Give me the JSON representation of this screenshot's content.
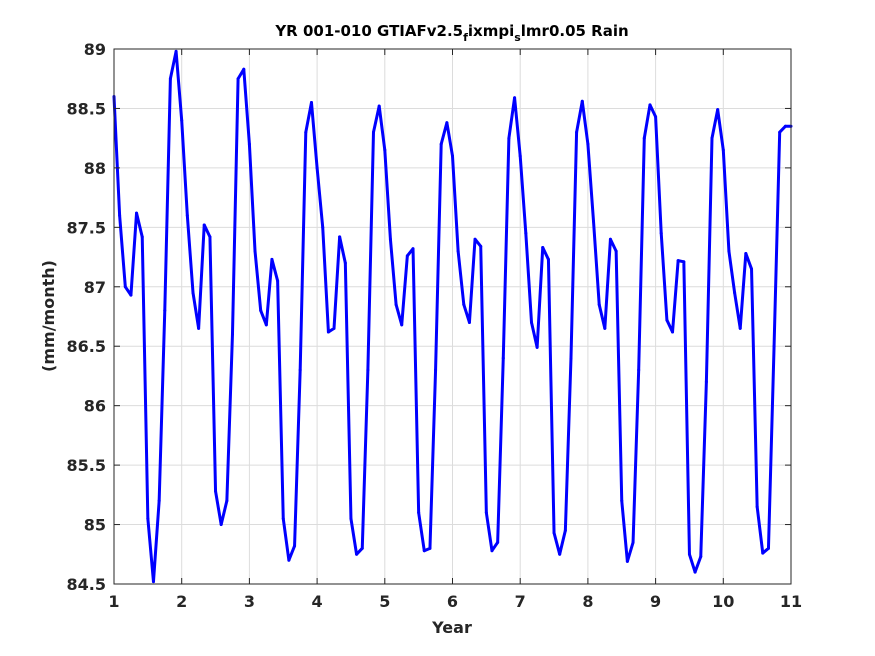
{
  "chart_data": {
    "type": "line",
    "title": {
      "part1": "YR 001-010 GTIAFv2.5",
      "sub1": "f",
      "part2": "ixmpi",
      "sub2": "s",
      "part3": "lmr0.05 Rain"
    },
    "xlabel": "Year",
    "ylabel": "(mm/month)",
    "xlim": [
      1,
      11
    ],
    "ylim": [
      84.5,
      89
    ],
    "xticks": [
      1,
      2,
      3,
      4,
      5,
      6,
      7,
      8,
      9,
      10,
      11
    ],
    "yticks": [
      84.5,
      85,
      85.5,
      86,
      86.5,
      87,
      87.5,
      88,
      88.5,
      89
    ],
    "xtick_labels": [
      "1",
      "2",
      "3",
      "4",
      "5",
      "6",
      "7",
      "8",
      "9",
      "10",
      "11"
    ],
    "ytick_labels": [
      "84.5",
      "85",
      "85.5",
      "86",
      "86.5",
      "87",
      "87.5",
      "88",
      "88.5",
      "89"
    ],
    "grid": true,
    "line_color": "#0000ff",
    "series": [
      {
        "x": [
          1.0,
          1.083,
          1.167,
          1.25,
          1.333,
          1.417,
          1.5,
          1.583,
          1.667,
          1.75,
          1.833,
          1.917,
          2.0,
          2.083,
          2.167,
          2.25,
          2.333,
          2.417,
          2.5,
          2.583,
          2.667,
          2.75,
          2.833,
          2.917,
          3.0,
          3.083,
          3.167,
          3.25,
          3.333,
          3.417,
          3.5,
          3.583,
          3.667,
          3.75,
          3.833,
          3.917,
          4.0,
          4.083,
          4.167,
          4.25,
          4.333,
          4.417,
          4.5,
          4.583,
          4.667,
          4.75,
          4.833,
          4.917,
          5.0,
          5.083,
          5.167,
          5.25,
          5.333,
          5.417,
          5.5,
          5.583,
          5.667,
          5.75,
          5.833,
          5.917,
          6.0,
          6.083,
          6.167,
          6.25,
          6.333,
          6.417,
          6.5,
          6.583,
          6.667,
          6.75,
          6.833,
          6.917,
          7.0,
          7.083,
          7.167,
          7.25,
          7.333,
          7.417,
          7.5,
          7.583,
          7.667,
          7.75,
          7.833,
          7.917,
          8.0,
          8.083,
          8.167,
          8.25,
          8.333,
          8.417,
          8.5,
          8.583,
          8.667,
          8.75,
          8.833,
          8.917,
          9.0,
          9.083,
          9.167,
          9.25,
          9.333,
          9.417,
          9.5,
          9.583,
          9.667,
          9.75,
          9.833,
          9.917,
          10.0,
          10.083,
          10.167,
          10.25,
          10.333,
          10.417,
          10.5,
          10.583,
          10.667,
          10.75,
          10.833,
          10.917,
          11.0
        ],
        "y": [
          88.6,
          87.6,
          87.0,
          86.93,
          87.62,
          87.42,
          85.05,
          84.52,
          85.2,
          86.8,
          88.75,
          88.98,
          88.4,
          87.6,
          86.95,
          86.65,
          87.52,
          87.42,
          85.28,
          85.0,
          85.2,
          86.6,
          88.75,
          88.83,
          88.2,
          87.3,
          86.8,
          86.68,
          87.23,
          87.05,
          85.05,
          84.7,
          84.82,
          86.3,
          88.3,
          88.55,
          88.0,
          87.5,
          86.62,
          86.65,
          87.42,
          87.2,
          85.05,
          84.75,
          84.8,
          86.3,
          88.3,
          88.52,
          88.15,
          87.4,
          86.85,
          86.68,
          87.26,
          87.32,
          85.1,
          84.78,
          84.8,
          86.3,
          88.2,
          88.38,
          88.1,
          87.3,
          86.85,
          86.7,
          87.4,
          87.34,
          85.1,
          84.78,
          84.85,
          86.4,
          88.25,
          88.59,
          88.1,
          87.45,
          86.7,
          86.49,
          87.33,
          87.23,
          84.93,
          84.75,
          84.95,
          86.4,
          88.3,
          88.56,
          88.2,
          87.55,
          86.85,
          86.65,
          87.4,
          87.3,
          85.2,
          84.69,
          84.85,
          86.3,
          88.25,
          88.53,
          88.43,
          87.45,
          86.72,
          86.62,
          87.22,
          87.21,
          84.75,
          84.6,
          84.73,
          86.2,
          88.25,
          88.49,
          88.15,
          87.3,
          86.95,
          86.65,
          87.28,
          87.15,
          85.15,
          84.76,
          84.8,
          86.5,
          88.3,
          88.35,
          88.35
        ]
      }
    ]
  }
}
